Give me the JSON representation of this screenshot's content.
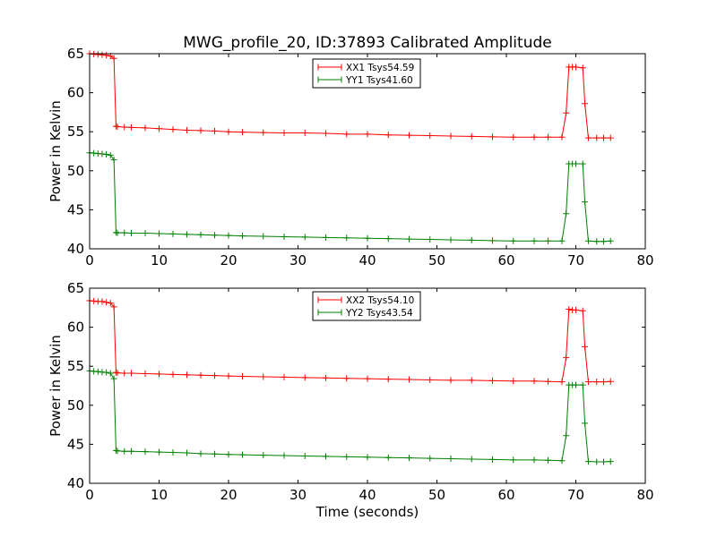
{
  "figure": {
    "title": "MWG_profile_20, ID:37893 Calibrated Amplitude"
  },
  "chart_data": [
    {
      "type": "line",
      "title": "MWG_profile_20, ID:37893 Calibrated Amplitude",
      "xlabel": "",
      "ylabel": "Power in Kelvin",
      "xlim": [
        0,
        80
      ],
      "ylim": [
        40,
        65
      ],
      "xticks": [
        "0",
        "10",
        "20",
        "30",
        "40",
        "50",
        "60",
        "70",
        "80"
      ],
      "yticks": [
        "40",
        "45",
        "50",
        "55",
        "60",
        "65"
      ],
      "legend_position": "top-center",
      "marker": "+",
      "series": [
        {
          "name": "XX1 Tsys54.59",
          "color": "#ff0000",
          "x": [
            0.0,
            0.6,
            1.2,
            1.8,
            2.4,
            3.0,
            3.5,
            3.8,
            4.0,
            5,
            6,
            8,
            10,
            12,
            14,
            16,
            18,
            20,
            22,
            25,
            28,
            31,
            34,
            37,
            40,
            43,
            46,
            49,
            52,
            55,
            58,
            61,
            64,
            66,
            68,
            68.6,
            69.0,
            69.5,
            70,
            71,
            71.3,
            71.8,
            73,
            74,
            75
          ],
          "y": [
            65.0,
            64.95,
            64.9,
            64.85,
            64.8,
            64.7,
            64.4,
            55.7,
            55.65,
            55.6,
            55.55,
            55.5,
            55.4,
            55.3,
            55.2,
            55.15,
            55.1,
            55.0,
            54.95,
            54.9,
            54.85,
            54.85,
            54.8,
            54.7,
            54.7,
            54.6,
            54.55,
            54.5,
            54.45,
            54.4,
            54.35,
            54.3,
            54.3,
            54.3,
            54.3,
            57.4,
            63.3,
            63.3,
            63.3,
            63.2,
            58.6,
            54.2,
            54.2,
            54.2,
            54.2
          ]
        },
        {
          "name": "YY1 Tsys41.60",
          "color": "#008000",
          "x": [
            0.0,
            0.6,
            1.2,
            1.8,
            2.4,
            3.0,
            3.5,
            3.8,
            4.0,
            5,
            6,
            8,
            10,
            12,
            14,
            16,
            18,
            20,
            22,
            25,
            28,
            31,
            34,
            37,
            40,
            43,
            46,
            49,
            52,
            55,
            58,
            61,
            64,
            66,
            68,
            68.6,
            69.0,
            69.5,
            70,
            71,
            71.3,
            71.8,
            73,
            74,
            75
          ],
          "y": [
            52.3,
            52.25,
            52.2,
            52.15,
            52.1,
            52.0,
            51.4,
            42.1,
            42.05,
            42.05,
            42.0,
            42.0,
            41.95,
            41.9,
            41.85,
            41.8,
            41.75,
            41.7,
            41.65,
            41.6,
            41.55,
            41.5,
            41.45,
            41.4,
            41.35,
            41.3,
            41.25,
            41.2,
            41.15,
            41.1,
            41.05,
            41.0,
            41.0,
            41.0,
            41.0,
            44.5,
            50.9,
            50.9,
            50.9,
            50.9,
            46.0,
            41.0,
            40.95,
            40.95,
            41.0
          ]
        }
      ]
    },
    {
      "type": "line",
      "title": "",
      "xlabel": "Time (seconds)",
      "ylabel": "Power in Kelvin",
      "xlim": [
        0,
        80
      ],
      "ylim": [
        40,
        65
      ],
      "xticks": [
        "0",
        "10",
        "20",
        "30",
        "40",
        "50",
        "60",
        "70",
        "80"
      ],
      "yticks": [
        "40",
        "45",
        "50",
        "55",
        "60",
        "65"
      ],
      "legend_position": "top-center",
      "marker": "+",
      "series": [
        {
          "name": "XX2 Tsys54.10",
          "color": "#ff0000",
          "x": [
            0.0,
            0.6,
            1.2,
            1.8,
            2.4,
            3.0,
            3.5,
            3.8,
            4.0,
            5,
            6,
            8,
            10,
            12,
            14,
            16,
            18,
            20,
            22,
            25,
            28,
            31,
            34,
            37,
            40,
            43,
            46,
            49,
            52,
            55,
            58,
            61,
            64,
            66,
            68,
            68.6,
            69.0,
            69.5,
            70,
            71,
            71.3,
            71.8,
            73,
            74,
            75
          ],
          "y": [
            63.4,
            63.35,
            63.3,
            63.3,
            63.2,
            63.1,
            62.6,
            54.2,
            54.15,
            54.1,
            54.1,
            54.05,
            54.0,
            53.95,
            53.9,
            53.85,
            53.8,
            53.75,
            53.7,
            53.65,
            53.6,
            53.55,
            53.5,
            53.45,
            53.4,
            53.35,
            53.3,
            53.25,
            53.2,
            53.2,
            53.15,
            53.1,
            53.1,
            53.05,
            53.0,
            56.1,
            62.3,
            62.2,
            62.2,
            62.1,
            57.5,
            53.0,
            53.0,
            53.0,
            53.05
          ]
        },
        {
          "name": "YY2 Tsys43.54",
          "color": "#008000",
          "x": [
            0.0,
            0.6,
            1.2,
            1.8,
            2.4,
            3.0,
            3.5,
            3.8,
            4.0,
            5,
            6,
            8,
            10,
            12,
            14,
            16,
            18,
            20,
            22,
            25,
            28,
            31,
            34,
            37,
            40,
            43,
            46,
            49,
            52,
            55,
            58,
            61,
            64,
            66,
            68,
            68.6,
            69.0,
            69.5,
            70,
            71,
            71.3,
            71.8,
            73,
            74,
            75
          ],
          "y": [
            54.4,
            54.35,
            54.3,
            54.25,
            54.2,
            54.1,
            53.4,
            44.2,
            44.15,
            44.1,
            44.1,
            44.05,
            44.0,
            43.95,
            43.9,
            43.8,
            43.75,
            43.7,
            43.65,
            43.6,
            43.55,
            43.5,
            43.45,
            43.4,
            43.35,
            43.3,
            43.25,
            43.2,
            43.15,
            43.1,
            43.05,
            43.0,
            43.0,
            42.95,
            42.9,
            46.1,
            52.6,
            52.6,
            52.6,
            52.6,
            47.7,
            42.8,
            42.75,
            42.75,
            42.8
          ]
        }
      ]
    }
  ]
}
